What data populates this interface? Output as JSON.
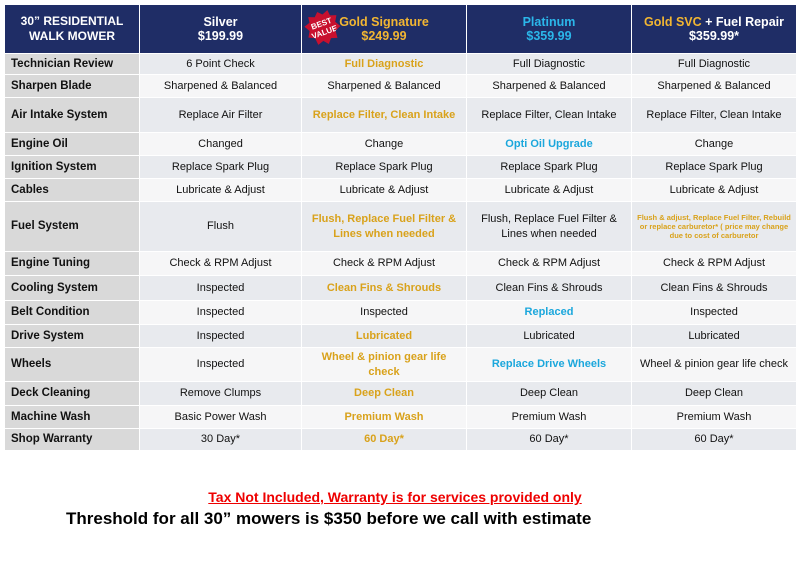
{
  "header": {
    "corner": "30” RESIDENTIAL WALK MOWER",
    "badge": "BEST VALUE",
    "plans": [
      {
        "name": "Silver",
        "price": "$199.99"
      },
      {
        "name": "Gold Signature",
        "price": "$249.99"
      },
      {
        "name": "Platinum",
        "price": "$359.99"
      },
      {
        "name": "Gold SVC",
        "name_suffix": "+ Fuel Repair",
        "price": "$359.99*"
      }
    ]
  },
  "table": {
    "rows": [
      [
        "Technician Review",
        "6 Point Check",
        "Full Diagnostic",
        "Full Diagnostic",
        "Full Diagnostic"
      ],
      [
        "Sharpen Blade",
        "Sharpened & Balanced",
        "Sharpened & Balanced",
        "Sharpened & Balanced",
        "Sharpened & Balanced"
      ],
      [
        "Air Intake System",
        "Replace Air Filter",
        "Replace Filter, Clean Intake",
        "Replace Filter, Clean Intake",
        "Replace Filter, Clean Intake"
      ],
      [
        "Engine Oil",
        "Changed",
        "Change",
        "Opti Oil Upgrade",
        "Change"
      ],
      [
        "Ignition System",
        "Replace Spark Plug",
        "Replace Spark Plug",
        "Replace Spark Plug",
        "Replace Spark Plug"
      ],
      [
        "Cables",
        "Lubricate & Adjust",
        "Lubricate & Adjust",
        "Lubricate & Adjust",
        "Lubricate & Adjust"
      ],
      [
        "Fuel System",
        "Flush",
        "Flush, Replace Fuel Filter & Lines when needed",
        "Flush, Replace Fuel Filter & Lines when needed",
        "Flush & adjust, Replace Fuel Filter, Rebuild or replace carburetor* ( price may change due to cost of carburetor"
      ],
      [
        "Engine Tuning",
        "Check & RPM Adjust",
        "Check & RPM Adjust",
        "Check & RPM Adjust",
        "Check & RPM Adjust"
      ],
      [
        "Cooling System",
        "Inspected",
        "Clean Fins & Shrouds",
        "Clean Fins & Shrouds",
        "Clean Fins & Shrouds"
      ],
      [
        "Belt Condition",
        "Inspected",
        "Inspected",
        "Replaced",
        "Inspected"
      ],
      [
        "Drive System",
        "Inspected",
        "Lubricated",
        "Lubricated",
        "Lubricated"
      ],
      [
        "Wheels",
        "Inspected",
        "Wheel & pinion gear life check",
        "Replace Drive Wheels",
        "Wheel & pinion gear life check"
      ],
      [
        "Deck Cleaning",
        "Remove Clumps",
        "Deep Clean",
        "Deep Clean",
        "Deep Clean"
      ],
      [
        "Machine Wash",
        "Basic Power Wash",
        "Premium Wash",
        "Premium Wash",
        "Premium Wash"
      ],
      [
        "Shop Warranty",
        "30 Day*",
        "60 Day*",
        "60 Day*",
        "60 Day*"
      ]
    ]
  },
  "footer": {
    "notice": "Tax Not Included, Warranty is for services provided only",
    "threshold": "Threshold for all 30” mowers is $350 before we call with estimate"
  }
}
